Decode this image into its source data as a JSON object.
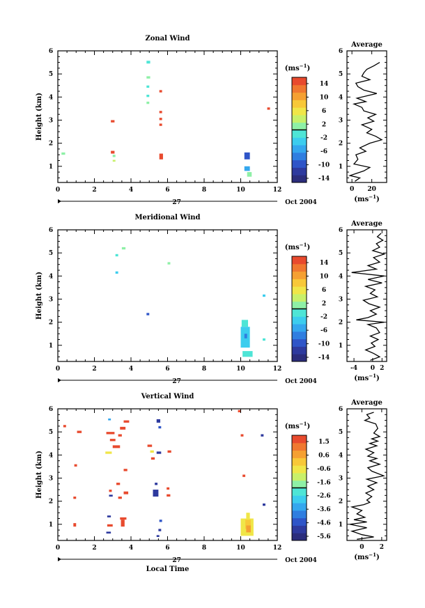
{
  "figure": {
    "date_label": "Oct 2004",
    "day_label": "27",
    "bottom_xlabel": "Local Time"
  },
  "colormaps": {
    "jet": [
      "#2b2d7c",
      "#2e3a9e",
      "#2f55c8",
      "#2f7ee0",
      "#34a7ee",
      "#3ccdee",
      "#4ee5d6",
      "#8ef0a6",
      "#c8f06a",
      "#f0e648",
      "#f8c838",
      "#f5a032",
      "#f07830",
      "#e84a2e"
    ]
  },
  "chart_data": [
    {
      "type": "heatmap",
      "name": "zonal",
      "title": "Zonal Wind",
      "ylabel": "Height (km)",
      "xlim": [
        0,
        12
      ],
      "ylim": [
        0.3,
        6
      ],
      "xticks": [
        0,
        2,
        4,
        6,
        8,
        10,
        12
      ],
      "yticks": [
        1,
        2,
        3,
        4,
        5,
        6
      ],
      "cells": [
        [
          0.2,
          1.5,
          0.2,
          0.1,
          7
        ],
        [
          2.9,
          2.9,
          0.2,
          0.1,
          13
        ],
        [
          2.9,
          1.55,
          0.2,
          0.12,
          13
        ],
        [
          3.0,
          1.4,
          0.15,
          0.1,
          7
        ],
        [
          3.0,
          1.2,
          0.15,
          0.08,
          8
        ],
        [
          4.85,
          5.45,
          0.2,
          0.12,
          6
        ],
        [
          4.85,
          4.8,
          0.2,
          0.1,
          7
        ],
        [
          4.85,
          4.4,
          0.15,
          0.1,
          6
        ],
        [
          4.85,
          4.0,
          0.15,
          0.1,
          6
        ],
        [
          4.85,
          3.7,
          0.15,
          0.1,
          7
        ],
        [
          5.55,
          4.2,
          0.15,
          0.1,
          13
        ],
        [
          5.55,
          3.3,
          0.15,
          0.1,
          13
        ],
        [
          5.55,
          3.0,
          0.15,
          0.1,
          13
        ],
        [
          5.55,
          2.75,
          0.15,
          0.1,
          13
        ],
        [
          5.55,
          1.3,
          0.2,
          0.25,
          13
        ],
        [
          10.2,
          1.3,
          0.3,
          0.3,
          2
        ],
        [
          10.2,
          0.8,
          0.3,
          0.2,
          4
        ],
        [
          10.35,
          0.55,
          0.25,
          0.2,
          7
        ],
        [
          11.45,
          3.45,
          0.15,
          0.1,
          13
        ]
      ],
      "colorbar": {
        "label": "(ms-1)",
        "ticks": [
          "14",
          "10",
          "6",
          "2",
          "-2",
          "-6",
          "-10",
          "-14"
        ],
        "min": -16,
        "max": 16
      }
    },
    {
      "type": "heatmap",
      "name": "meridional",
      "title": "Meridional Wind",
      "ylabel": "Height (km)",
      "xlim": [
        0,
        12
      ],
      "ylim": [
        0.3,
        6
      ],
      "xticks": [
        0,
        2,
        4,
        6,
        8,
        10,
        12
      ],
      "yticks": [
        1,
        2,
        3,
        4,
        5,
        6
      ],
      "cells": [
        [
          3.5,
          5.15,
          0.2,
          0.1,
          7
        ],
        [
          3.15,
          4.85,
          0.15,
          0.1,
          6
        ],
        [
          3.15,
          4.1,
          0.15,
          0.1,
          5
        ],
        [
          6.0,
          4.5,
          0.15,
          0.1,
          7
        ],
        [
          4.85,
          2.3,
          0.15,
          0.1,
          2
        ],
        [
          11.2,
          3.1,
          0.15,
          0.1,
          5
        ],
        [
          11.2,
          1.2,
          0.15,
          0.1,
          6
        ],
        [
          10.05,
          1.8,
          0.35,
          0.3,
          6
        ],
        [
          10.0,
          0.9,
          0.5,
          0.9,
          5
        ],
        [
          10.2,
          1.3,
          0.15,
          0.2,
          3
        ],
        [
          10.1,
          0.5,
          0.55,
          0.25,
          6
        ]
      ],
      "colorbar": {
        "label": "(ms-1)",
        "ticks": [
          "14",
          "10",
          "6",
          "2",
          "-2",
          "-6",
          "-10",
          "-14"
        ],
        "min": -16,
        "max": 16
      }
    },
    {
      "type": "heatmap",
      "name": "vertical",
      "title": "Vertical Wind",
      "xlabel": "Local Time",
      "ylabel": "Height (km)",
      "xlim": [
        0,
        12
      ],
      "ylim": [
        0.3,
        6
      ],
      "xticks": [
        0,
        2,
        4,
        6,
        8,
        10,
        12
      ],
      "yticks": [
        1,
        2,
        3,
        4,
        5,
        6
      ],
      "cells": [
        [
          0.3,
          5.2,
          0.15,
          0.1,
          13
        ],
        [
          1.05,
          4.95,
          0.25,
          0.1,
          13
        ],
        [
          0.9,
          3.5,
          0.15,
          0.1,
          13
        ],
        [
          0.85,
          2.1,
          0.15,
          0.1,
          13
        ],
        [
          0.85,
          0.9,
          0.15,
          0.15,
          13
        ],
        [
          2.65,
          4.9,
          0.45,
          0.1,
          13
        ],
        [
          2.85,
          4.6,
          0.3,
          0.1,
          13
        ],
        [
          2.6,
          4.05,
          0.35,
          0.1,
          9
        ],
        [
          3.0,
          4.3,
          0.4,
          0.12,
          13
        ],
        [
          3.6,
          5.4,
          0.3,
          0.1,
          13
        ],
        [
          3.4,
          5.1,
          0.3,
          0.12,
          13
        ],
        [
          3.3,
          4.8,
          0.2,
          0.1,
          13
        ],
        [
          3.6,
          3.3,
          0.2,
          0.1,
          13
        ],
        [
          3.2,
          2.7,
          0.2,
          0.1,
          13
        ],
        [
          3.6,
          2.3,
          0.25,
          0.12,
          13
        ],
        [
          3.3,
          2.1,
          0.2,
          0.1,
          13
        ],
        [
          2.8,
          2.4,
          0.15,
          0.1,
          13
        ],
        [
          2.8,
          2.2,
          0.2,
          0.08,
          1
        ],
        [
          2.7,
          1.3,
          0.2,
          0.08,
          1
        ],
        [
          3.4,
          1.2,
          0.35,
          0.1,
          13
        ],
        [
          2.7,
          0.9,
          0.3,
          0.1,
          13
        ],
        [
          2.65,
          0.6,
          0.25,
          0.08,
          1
        ],
        [
          3.45,
          0.9,
          0.2,
          0.3,
          13
        ],
        [
          2.75,
          5.5,
          0.15,
          0.08,
          4
        ],
        [
          5.4,
          5.4,
          0.2,
          0.15,
          1
        ],
        [
          5.5,
          5.15,
          0.15,
          0.1,
          2
        ],
        [
          4.9,
          4.35,
          0.25,
          0.1,
          13
        ],
        [
          5.05,
          4.1,
          0.2,
          0.1,
          9
        ],
        [
          5.4,
          4.05,
          0.25,
          0.1,
          1
        ],
        [
          5.1,
          3.8,
          0.2,
          0.1,
          13
        ],
        [
          5.3,
          2.7,
          0.15,
          0.1,
          1
        ],
        [
          5.2,
          2.2,
          0.3,
          0.3,
          1
        ],
        [
          6.0,
          4.1,
          0.2,
          0.1,
          13
        ],
        [
          5.95,
          2.5,
          0.15,
          0.1,
          13
        ],
        [
          5.95,
          2.2,
          0.2,
          0.1,
          13
        ],
        [
          5.55,
          1.1,
          0.15,
          0.1,
          2
        ],
        [
          5.5,
          0.7,
          0.15,
          0.1,
          1
        ],
        [
          5.4,
          0.45,
          0.15,
          0.08,
          1
        ],
        [
          9.85,
          5.85,
          0.15,
          0.1,
          13
        ],
        [
          10.0,
          4.8,
          0.15,
          0.1,
          13
        ],
        [
          10.1,
          3.05,
          0.15,
          0.1,
          13
        ],
        [
          11.1,
          4.8,
          0.15,
          0.1,
          1
        ],
        [
          11.2,
          1.8,
          0.15,
          0.1,
          1
        ],
        [
          10.0,
          0.5,
          0.7,
          0.75,
          9
        ],
        [
          10.25,
          0.8,
          0.3,
          0.4,
          10
        ],
        [
          10.3,
          1.2,
          0.2,
          0.3,
          9
        ],
        [
          10.3,
          0.65,
          0.25,
          0.3,
          11
        ]
      ],
      "colorbar": {
        "label": "(ms-1)",
        "ticks": [
          "1.5",
          "0.6",
          "-0.6",
          "-1.6",
          "-2.6",
          "-3.6",
          "-4.6",
          "-5.6"
        ],
        "min": -6.4,
        "max": 2
      }
    }
  ],
  "average_profiles": [
    {
      "type": "line",
      "name": "zonal_avg",
      "title": "Average",
      "xlabel": "(ms-1)",
      "xlim": [
        -5,
        35
      ],
      "ylim": [
        0.3,
        6
      ],
      "xticks": [
        "0",
        "20"
      ],
      "xtick_values": [
        0,
        20
      ],
      "yticks": [
        1,
        2,
        3,
        4,
        5,
        6
      ],
      "points": [
        [
          3,
          0.35
        ],
        [
          8,
          0.5
        ],
        [
          -2,
          0.6
        ],
        [
          12,
          0.8
        ],
        [
          18,
          0.95
        ],
        [
          2,
          1.1
        ],
        [
          6,
          1.3
        ],
        [
          4,
          1.5
        ],
        [
          14,
          1.65
        ],
        [
          8,
          1.8
        ],
        [
          18,
          2.0
        ],
        [
          30,
          2.15
        ],
        [
          24,
          2.3
        ],
        [
          15,
          2.45
        ],
        [
          20,
          2.6
        ],
        [
          10,
          2.8
        ],
        [
          22,
          2.95
        ],
        [
          16,
          3.1
        ],
        [
          24,
          3.25
        ],
        [
          12,
          3.4
        ],
        [
          10,
          3.55
        ],
        [
          2,
          3.7
        ],
        [
          14,
          3.8
        ],
        [
          5,
          3.95
        ],
        [
          25,
          4.15
        ],
        [
          12,
          4.3
        ],
        [
          6,
          4.45
        ],
        [
          4,
          4.6
        ],
        [
          18,
          4.75
        ],
        [
          10,
          4.9
        ],
        [
          12,
          5.05
        ],
        [
          15,
          5.2
        ],
        [
          22,
          5.35
        ],
        [
          28,
          5.5
        ]
      ]
    },
    {
      "type": "line",
      "name": "meridional_avg",
      "title": "Average",
      "xlabel": "(ms-1)",
      "xlim": [
        -5.5,
        3
      ],
      "ylim": [
        0.3,
        6
      ],
      "xticks": [
        "-4",
        "0",
        "2"
      ],
      "xtick_values": [
        -4,
        0,
        2
      ],
      "yticks": [
        1,
        2,
        3,
        4,
        5,
        6
      ],
      "points": [
        [
          -0.5,
          0.35
        ],
        [
          1.5,
          0.5
        ],
        [
          0.2,
          0.65
        ],
        [
          -1.5,
          0.8
        ],
        [
          0.5,
          0.95
        ],
        [
          -0.3,
          1.1
        ],
        [
          1.2,
          1.25
        ],
        [
          -0.5,
          1.4
        ],
        [
          1.5,
          1.55
        ],
        [
          0.8,
          1.75
        ],
        [
          -1.0,
          1.9
        ],
        [
          2.5,
          2.0
        ],
        [
          -3.5,
          2.1
        ],
        [
          -1.0,
          2.2
        ],
        [
          0.8,
          2.35
        ],
        [
          -0.5,
          2.5
        ],
        [
          1.5,
          2.65
        ],
        [
          -0.8,
          2.8
        ],
        [
          -2.0,
          2.95
        ],
        [
          1.0,
          3.1
        ],
        [
          -0.5,
          3.25
        ],
        [
          0.5,
          3.4
        ],
        [
          -1.5,
          3.55
        ],
        [
          2.0,
          3.7
        ],
        [
          -1.0,
          3.85
        ],
        [
          2.5,
          4.0
        ],
        [
          -4.5,
          4.15
        ],
        [
          0.8,
          4.3
        ],
        [
          -1.0,
          4.45
        ],
        [
          1.5,
          4.6
        ],
        [
          0.2,
          4.8
        ],
        [
          2.5,
          4.95
        ],
        [
          0.0,
          5.1
        ],
        [
          1.5,
          5.25
        ],
        [
          0.8,
          5.4
        ],
        [
          2.2,
          5.55
        ],
        [
          1.0,
          5.7
        ],
        [
          1.8,
          5.85
        ]
      ]
    },
    {
      "type": "line",
      "name": "vertical_avg",
      "title": "Average",
      "xlabel": "(ms-1)",
      "xlim": [
        -1.5,
        2.5
      ],
      "ylim": [
        0.3,
        6
      ],
      "xticks": [
        "0",
        "2"
      ],
      "xtick_values": [
        0,
        2
      ],
      "yticks": [
        1,
        2,
        3,
        4,
        5,
        6
      ],
      "points": [
        [
          -0.5,
          0.35
        ],
        [
          1.2,
          0.45
        ],
        [
          0.0,
          0.55
        ],
        [
          -1.0,
          0.7
        ],
        [
          0.5,
          0.85
        ],
        [
          -1.2,
          1.0
        ],
        [
          0.5,
          1.1
        ],
        [
          -0.8,
          1.2
        ],
        [
          0.3,
          1.3
        ],
        [
          -0.5,
          1.45
        ],
        [
          0.0,
          1.6
        ],
        [
          -1.0,
          1.75
        ],
        [
          0.2,
          1.85
        ],
        [
          0.8,
          1.95
        ],
        [
          0.5,
          2.05
        ],
        [
          1.0,
          2.2
        ],
        [
          0.4,
          2.35
        ],
        [
          1.2,
          2.5
        ],
        [
          0.6,
          2.65
        ],
        [
          1.5,
          2.8
        ],
        [
          0.5,
          2.95
        ],
        [
          2.2,
          3.1
        ],
        [
          1.0,
          3.3
        ],
        [
          0.6,
          3.45
        ],
        [
          1.8,
          3.6
        ],
        [
          0.8,
          3.75
        ],
        [
          1.5,
          3.85
        ],
        [
          0.6,
          3.95
        ],
        [
          1.2,
          4.1
        ],
        [
          0.4,
          4.25
        ],
        [
          1.5,
          4.4
        ],
        [
          0.8,
          4.5
        ],
        [
          1.6,
          4.6
        ],
        [
          1.0,
          4.7
        ],
        [
          1.8,
          4.8
        ],
        [
          1.2,
          4.95
        ],
        [
          1.6,
          5.15
        ],
        [
          1.4,
          5.35
        ],
        [
          0.3,
          5.5
        ],
        [
          0.8,
          5.6
        ],
        [
          0.5,
          5.75
        ],
        [
          1.2,
          5.85
        ]
      ]
    }
  ]
}
